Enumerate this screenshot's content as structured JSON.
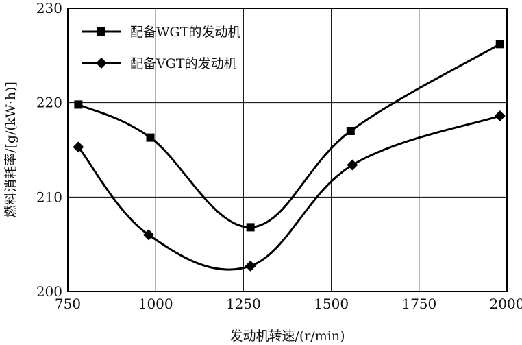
{
  "chart_data": {
    "type": "line",
    "title": "",
    "xlabel": "发动机转速/(r/min)",
    "ylabel": "燃料消耗率/[g/(kW·h)]",
    "xlim": [
      750,
      2000
    ],
    "ylim": [
      200,
      230
    ],
    "xticks": [
      750,
      1000,
      1250,
      1500,
      1750,
      2000
    ],
    "yticks": [
      200,
      210,
      220,
      230
    ],
    "grid": true,
    "legend": "top-left",
    "series": [
      {
        "name": "配备WGT的发动机",
        "marker": "square",
        "x": [
          780,
          985,
          1270,
          1555,
          1980
        ],
        "y": [
          219.8,
          216.3,
          206.8,
          217.0,
          226.2
        ]
      },
      {
        "name": "配备VGT的发动机",
        "marker": "diamond",
        "x": [
          780,
          980,
          1270,
          1560,
          1980
        ],
        "y": [
          215.3,
          206.0,
          202.7,
          213.4,
          218.6
        ]
      }
    ],
    "colors": {
      "line": "#000000",
      "grid": "#000000",
      "axis": "#000000"
    }
  }
}
